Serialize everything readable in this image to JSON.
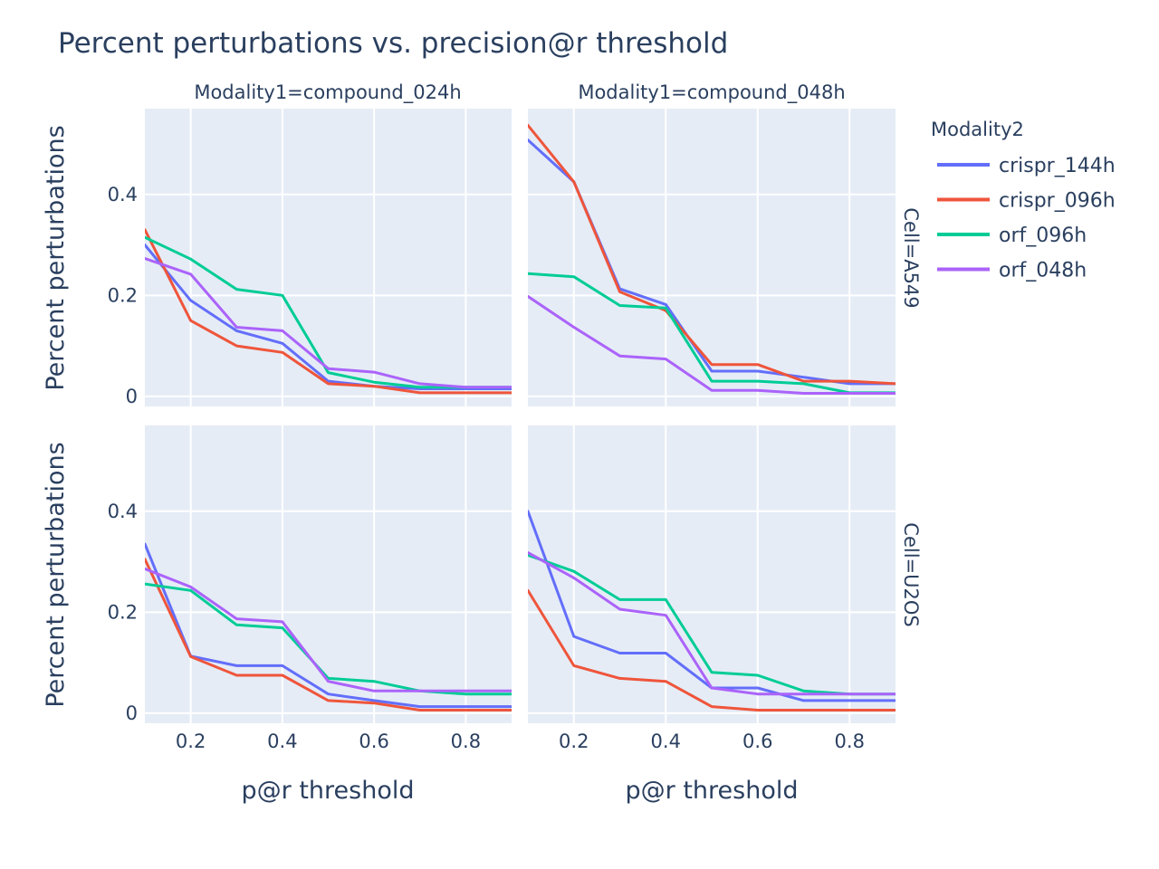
{
  "chart_data": {
    "type": "line",
    "title": "Percent perturbations vs. precision@r threshold",
    "xlabel": "p@r threshold",
    "ylabel": "Percent perturbations",
    "xlim": [
      0.1,
      0.9
    ],
    "ylim": [
      -0.02,
      0.57
    ],
    "x_ticks": [
      "0.2",
      "0.4",
      "0.6",
      "0.8"
    ],
    "y_ticks": [
      "0",
      "0.2",
      "0.4"
    ],
    "column_labels": [
      "Modality1=compound_024h",
      "Modality1=compound_048h"
    ],
    "row_labels": [
      "Cell=A549",
      "Cell=U2OS"
    ],
    "legend": {
      "title": "Modality2",
      "position": "right"
    },
    "grid": true,
    "x": [
      0.1,
      0.2,
      0.3,
      0.4,
      0.5,
      0.6,
      0.7,
      0.8,
      0.9
    ],
    "series_styles": [
      {
        "name": "crispr_144h",
        "color": "#636efa"
      },
      {
        "name": "crispr_096h",
        "color": "#ef553b"
      },
      {
        "name": "orf_096h",
        "color": "#00cc96"
      },
      {
        "name": "orf_048h",
        "color": "#ab63fa"
      }
    ],
    "panels": [
      {
        "row": "Cell=A549",
        "col": "Modality1=compound_024h",
        "series": [
          {
            "name": "crispr_144h",
            "values": [
              0.3,
              0.19,
              0.13,
              0.105,
              0.03,
              0.02,
              0.015,
              0.015,
              0.015
            ]
          },
          {
            "name": "crispr_096h",
            "values": [
              0.33,
              0.15,
              0.1,
              0.087,
              0.025,
              0.02,
              0.007,
              0.007,
              0.007
            ]
          },
          {
            "name": "orf_096h",
            "values": [
              0.315,
              0.272,
              0.212,
              0.2,
              0.047,
              0.028,
              0.018,
              0.018,
              0.018
            ]
          },
          {
            "name": "orf_048h",
            "values": [
              0.273,
              0.242,
              0.137,
              0.13,
              0.055,
              0.048,
              0.025,
              0.018,
              0.018
            ]
          }
        ]
      },
      {
        "row": "Cell=A549",
        "col": "Modality1=compound_048h",
        "series": [
          {
            "name": "crispr_144h",
            "values": [
              0.508,
              0.425,
              0.213,
              0.182,
              0.05,
              0.05,
              0.038,
              0.025,
              0.025
            ]
          },
          {
            "name": "crispr_096h",
            "values": [
              0.537,
              0.425,
              0.207,
              0.17,
              0.063,
              0.063,
              0.03,
              0.03,
              0.025
            ]
          },
          {
            "name": "orf_096h",
            "values": [
              0.243,
              0.237,
              0.18,
              0.175,
              0.03,
              0.03,
              0.025,
              0.007,
              0.007
            ]
          },
          {
            "name": "orf_048h",
            "values": [
              0.198,
              0.137,
              0.08,
              0.074,
              0.012,
              0.012,
              0.006,
              0.006,
              0.006
            ]
          }
        ]
      },
      {
        "row": "Cell=U2OS",
        "col": "Modality1=compound_024h",
        "series": [
          {
            "name": "crispr_144h",
            "values": [
              0.335,
              0.113,
              0.094,
              0.094,
              0.038,
              0.025,
              0.013,
              0.013,
              0.013
            ]
          },
          {
            "name": "crispr_096h",
            "values": [
              0.305,
              0.112,
              0.075,
              0.075,
              0.025,
              0.02,
              0.006,
              0.006,
              0.006
            ]
          },
          {
            "name": "orf_096h",
            "values": [
              0.256,
              0.243,
              0.175,
              0.169,
              0.069,
              0.063,
              0.044,
              0.038,
              0.038
            ]
          },
          {
            "name": "orf_048h",
            "values": [
              0.286,
              0.25,
              0.187,
              0.181,
              0.063,
              0.044,
              0.044,
              0.044,
              0.044
            ]
          }
        ]
      },
      {
        "row": "Cell=U2OS",
        "col": "Modality1=compound_048h",
        "series": [
          {
            "name": "crispr_144h",
            "values": [
              0.4,
              0.152,
              0.119,
              0.119,
              0.05,
              0.05,
              0.025,
              0.025,
              0.025
            ]
          },
          {
            "name": "crispr_096h",
            "values": [
              0.243,
              0.094,
              0.069,
              0.063,
              0.013,
              0.006,
              0.006,
              0.006,
              0.006
            ]
          },
          {
            "name": "orf_096h",
            "values": [
              0.313,
              0.281,
              0.225,
              0.225,
              0.081,
              0.075,
              0.044,
              0.038,
              0.038
            ]
          },
          {
            "name": "orf_048h",
            "values": [
              0.318,
              0.268,
              0.206,
              0.194,
              0.05,
              0.038,
              0.038,
              0.038,
              0.038
            ]
          }
        ]
      }
    ]
  }
}
